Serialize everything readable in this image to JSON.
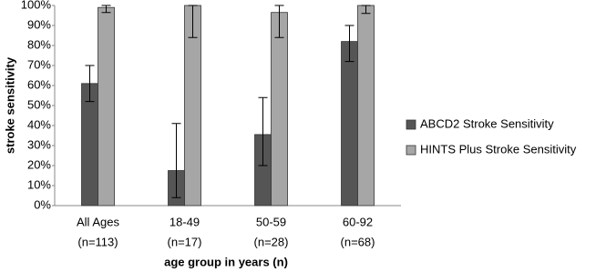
{
  "chart_data": {
    "type": "bar",
    "y_label": "stroke sensitivity",
    "x_label": "age group in years (n)",
    "categories": [
      [
        "All Ages",
        "(n=113)"
      ],
      [
        "18-49",
        "(n=17)"
      ],
      [
        "50-59",
        "(n=28)"
      ],
      [
        "60-92",
        "(n=68)"
      ]
    ],
    "series": [
      {
        "name": "ABCD2 Stroke Sensitivity",
        "color": "#555555",
        "values": [
          61,
          17.5,
          35.5,
          82
        ],
        "error_minus": [
          9,
          13.5,
          15.5,
          10
        ],
        "error_plus": [
          9,
          23.5,
          18.5,
          8
        ]
      },
      {
        "name": "HINTS Plus Stroke Sensitivity",
        "color": "#a6a6a6",
        "values": [
          99,
          100,
          96.5,
          100
        ],
        "error_minus": [
          2.5,
          16,
          12.5,
          4
        ],
        "error_plus": [
          1,
          0,
          3.5,
          0
        ]
      }
    ],
    "ylim": [
      0,
      100
    ],
    "yticks": [
      {
        "value": 0,
        "label": "0%"
      },
      {
        "value": 10,
        "label": "10%"
      },
      {
        "value": 20,
        "label": "20%"
      },
      {
        "value": 30,
        "label": "30%"
      },
      {
        "value": 40,
        "label": "40%"
      },
      {
        "value": 50,
        "label": "50%"
      },
      {
        "value": 60,
        "label": "60%"
      },
      {
        "value": 70,
        "label": "70%"
      },
      {
        "value": 80,
        "label": "80%"
      },
      {
        "value": 90,
        "label": "90%"
      },
      {
        "value": 100,
        "label": "100%"
      }
    ],
    "grid": false,
    "legend": "right"
  }
}
